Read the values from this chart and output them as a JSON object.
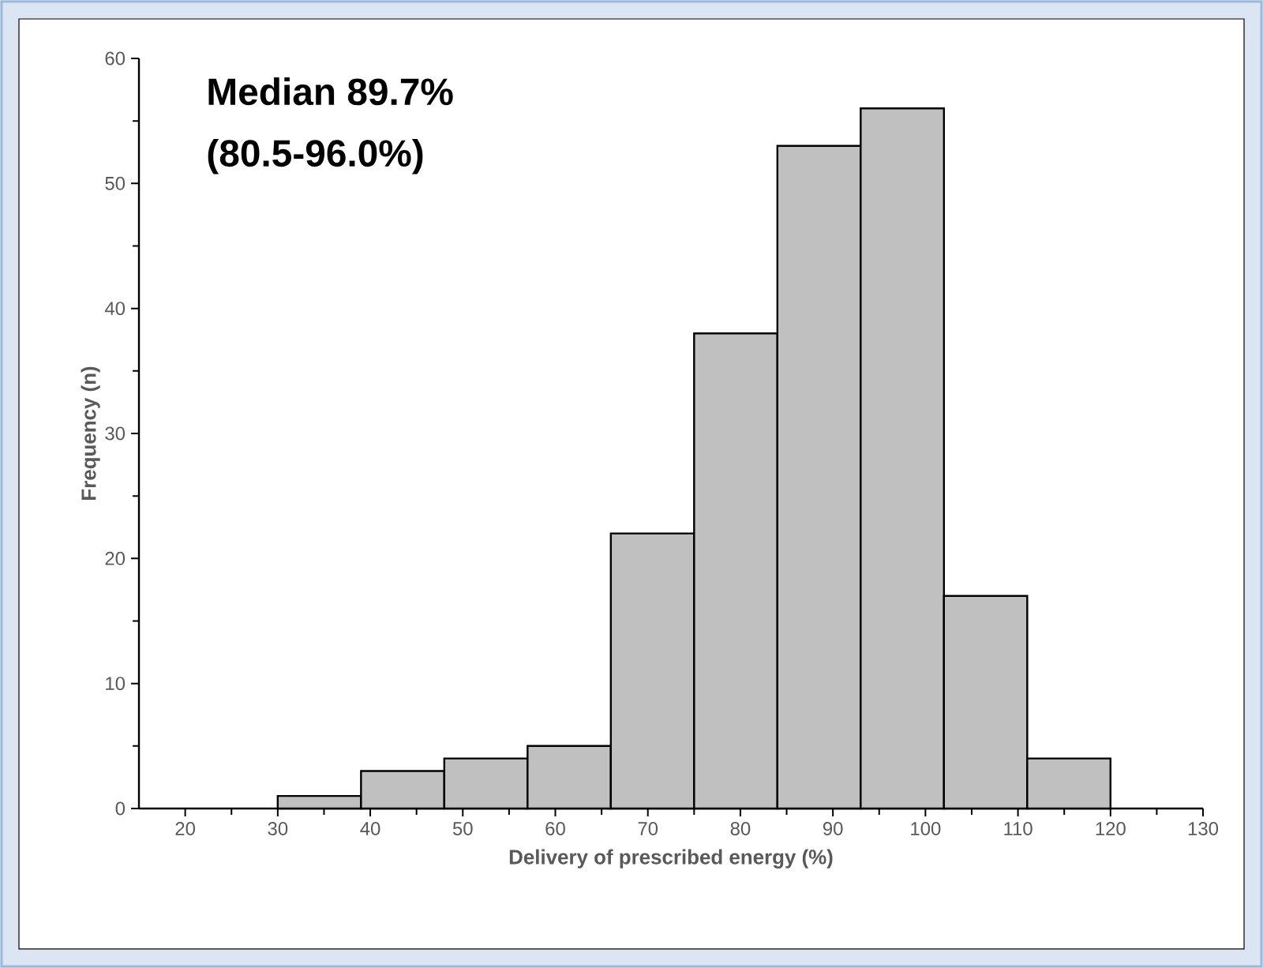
{
  "chart_data": {
    "type": "histogram",
    "xlabel": "Delivery of prescribed energy (%)",
    "ylabel": "Frequency (n)",
    "annotations": [
      "Median 89.7%",
      "(80.5-96.0%)"
    ],
    "bins": [
      30,
      39,
      48,
      57,
      66,
      75,
      84,
      93,
      102,
      111,
      120
    ],
    "values": [
      1,
      3,
      4,
      5,
      22,
      38,
      53,
      56,
      17,
      4
    ],
    "color": "#c0c0c0",
    "xlim": [
      15,
      130
    ],
    "xticks": [
      20,
      30,
      40,
      50,
      60,
      70,
      80,
      90,
      100,
      110,
      120,
      130
    ],
    "ylim": [
      0,
      60
    ],
    "yticks": [
      0,
      10,
      20,
      30,
      40,
      50,
      60
    ]
  }
}
